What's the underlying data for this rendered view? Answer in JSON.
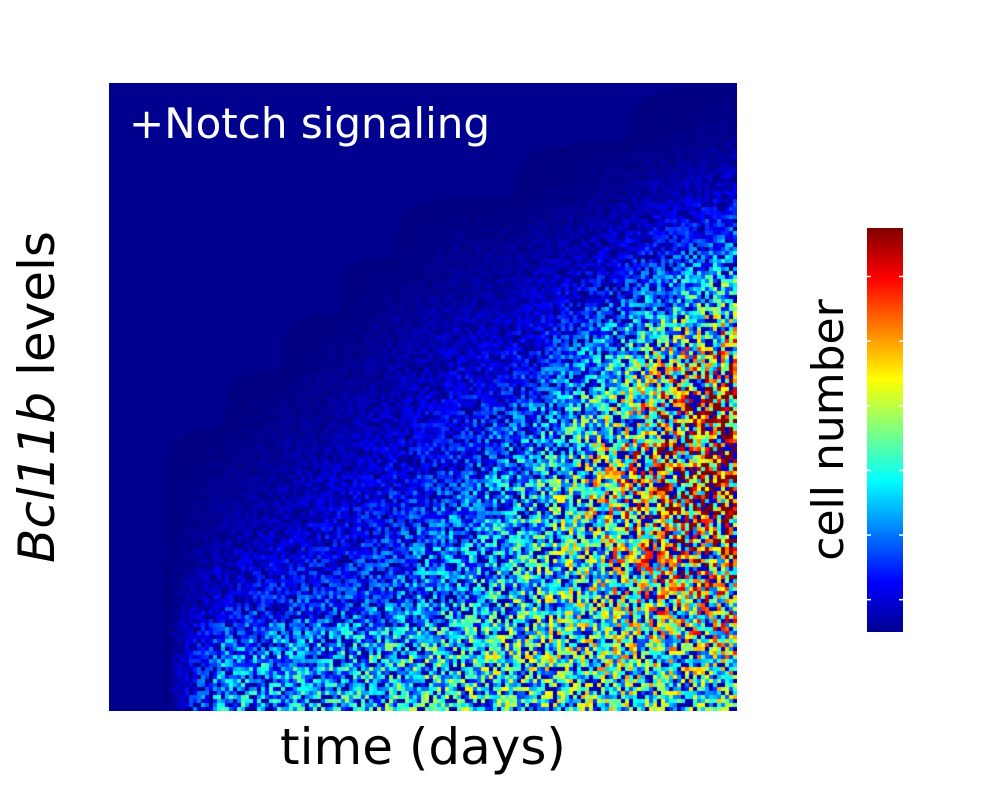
{
  "chart_data": {
    "type": "heatmap",
    "title": "",
    "panel_label": "+Notch signaling",
    "xlabel": "time (days)",
    "ylabel_italic": "Bcl11b",
    "ylabel_rest": " levels",
    "colorbar_label": "cell number",
    "colormap": "jet",
    "x_ticks": [],
    "y_ticks": [],
    "grid": false,
    "density_rows_bottom_to_top": [
      [
        0.0,
        0.0,
        0.3,
        0.3,
        0.32,
        0.35,
        0.38,
        0.4,
        0.42,
        0.42,
        0.4,
        0.4
      ],
      [
        0.0,
        0.0,
        0.24,
        0.28,
        0.3,
        0.34,
        0.38,
        0.42,
        0.45,
        0.48,
        0.5,
        0.52
      ],
      [
        0.0,
        0.0,
        0.1,
        0.15,
        0.18,
        0.22,
        0.28,
        0.35,
        0.42,
        0.5,
        0.58,
        0.62
      ],
      [
        0.0,
        0.0,
        0.04,
        0.08,
        0.12,
        0.18,
        0.25,
        0.32,
        0.42,
        0.55,
        0.68,
        0.75
      ],
      [
        0.0,
        0.0,
        0.02,
        0.04,
        0.08,
        0.12,
        0.18,
        0.28,
        0.4,
        0.58,
        0.75,
        0.88
      ],
      [
        0.0,
        0.0,
        0.0,
        0.02,
        0.04,
        0.08,
        0.12,
        0.2,
        0.32,
        0.5,
        0.7,
        0.92
      ],
      [
        0.0,
        0.0,
        0.0,
        0.0,
        0.02,
        0.04,
        0.08,
        0.12,
        0.22,
        0.38,
        0.58,
        0.75
      ],
      [
        0.0,
        0.0,
        0.0,
        0.0,
        0.0,
        0.02,
        0.04,
        0.06,
        0.12,
        0.22,
        0.36,
        0.48
      ],
      [
        0.0,
        0.0,
        0.0,
        0.0,
        0.0,
        0.0,
        0.02,
        0.03,
        0.05,
        0.1,
        0.18,
        0.25
      ],
      [
        0.0,
        0.0,
        0.0,
        0.0,
        0.0,
        0.0,
        0.0,
        0.0,
        0.01,
        0.03,
        0.06,
        0.1
      ],
      [
        0.0,
        0.0,
        0.0,
        0.0,
        0.0,
        0.0,
        0.0,
        0.0,
        0.0,
        0.0,
        0.01,
        0.02
      ],
      [
        0.0,
        0.0,
        0.0,
        0.0,
        0.0,
        0.0,
        0.0,
        0.0,
        0.0,
        0.0,
        0.0,
        0.0
      ]
    ],
    "colors": {
      "background": "#00008f",
      "colorbar_ticks": "#ffffff"
    }
  }
}
